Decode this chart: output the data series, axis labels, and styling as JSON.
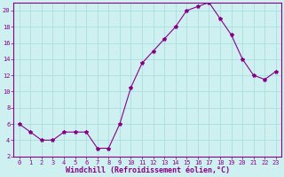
{
  "x": [
    0,
    1,
    2,
    3,
    4,
    5,
    6,
    7,
    8,
    9,
    10,
    11,
    12,
    13,
    14,
    15,
    16,
    17,
    18,
    19,
    20,
    21,
    22,
    23
  ],
  "y": [
    6,
    5,
    4,
    4,
    5,
    5,
    5,
    3,
    3,
    6,
    10.5,
    13.5,
    15,
    16.5,
    18,
    20,
    20.5,
    21,
    19,
    17,
    14,
    12,
    11.5,
    12.5
  ],
  "line_color": "#880088",
  "marker": "*",
  "marker_color": "#880088",
  "bg_color": "#cff0f0",
  "grid_color": "#aadddd",
  "xlabel": "Windchill (Refroidissement éolien,°C)",
  "xlabel_color": "#880088",
  "tick_color": "#880088",
  "spine_color": "#880088",
  "xlim_min": -0.5,
  "xlim_max": 23.5,
  "ylim_min": 2,
  "ylim_max": 21,
  "yticks": [
    2,
    4,
    6,
    8,
    10,
    12,
    14,
    16,
    18,
    20
  ],
  "xticks": [
    0,
    1,
    2,
    3,
    4,
    5,
    6,
    7,
    8,
    9,
    10,
    11,
    12,
    13,
    14,
    15,
    16,
    17,
    18,
    19,
    20,
    21,
    22,
    23
  ],
  "tick_fontsize": 5,
  "xlabel_fontsize": 6,
  "marker_size": 3
}
